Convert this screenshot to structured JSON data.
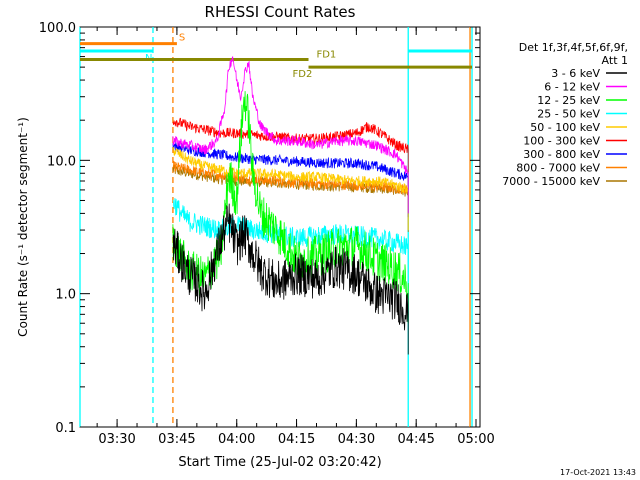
{
  "chart_data": {
    "type": "line",
    "title": "RHESSI Count Rates",
    "xlabel": "Start Time (25-Jul-02 03:20:42)",
    "ylabel": "Count Rate (s⁻¹ detector segment⁻¹)",
    "yscale": "log",
    "ylim": [
      0.1,
      100.0
    ],
    "xlim": [
      "03:20:42",
      "05:01:00"
    ],
    "x_ticks": [
      "03:30",
      "03:45",
      "04:00",
      "04:15",
      "04:30",
      "04:45",
      "05:00"
    ],
    "y_ticks": [
      "0.1",
      "1.0",
      "10.0",
      "100.0"
    ],
    "legend_header": [
      "Det 1f,3f,4f,5f,6f,9f,",
      "Att 1"
    ],
    "legend_position": "right",
    "timestamp": "17-Oct-2021 13:43",
    "series": [
      {
        "name": "3 - 6 keV",
        "color": "#000000",
        "x": [
          "03:44",
          "03:46",
          "03:48",
          "03:50",
          "03:52",
          "03:54",
          "03:56",
          "03:58",
          "04:00",
          "04:02",
          "04:04",
          "04:06",
          "04:10",
          "04:15",
          "04:20",
          "04:25",
          "04:30",
          "04:35",
          "04:40",
          "04:43"
        ],
        "y": [
          2.4,
          1.8,
          1.4,
          1.2,
          1.0,
          1.6,
          2.5,
          3.5,
          2.3,
          2.8,
          2.0,
          1.5,
          1.2,
          1.4,
          1.3,
          1.6,
          1.4,
          1.0,
          0.9,
          0.7
        ]
      },
      {
        "name": "6 - 12 keV",
        "color": "#ff00ff",
        "x": [
          "03:44",
          "03:48",
          "03:52",
          "03:55",
          "03:57",
          "03:58",
          "03:59",
          "04:00",
          "04:01",
          "04:02",
          "04:03",
          "04:04",
          "04:06",
          "04:10",
          "04:15",
          "04:20",
          "04:25",
          "04:30",
          "04:35",
          "04:40",
          "04:43"
        ],
        "y": [
          14,
          13,
          12,
          14,
          25,
          50,
          60,
          40,
          30,
          45,
          55,
          30,
          18,
          14,
          14,
          13,
          14,
          14,
          13,
          11,
          8
        ]
      },
      {
        "name": "12 - 25 keV",
        "color": "#00ff00",
        "x": [
          "03:44",
          "03:46",
          "03:48",
          "03:52",
          "03:56",
          "03:58",
          "04:00",
          "04:01",
          "04:02",
          "04:03",
          "04:04",
          "04:06",
          "04:10",
          "04:15",
          "04:20",
          "04:25",
          "04:30",
          "04:35",
          "04:40",
          "04:43"
        ],
        "y": [
          2.5,
          1.9,
          1.5,
          1.3,
          2.0,
          8.0,
          5.0,
          15,
          30,
          20,
          8.0,
          4.0,
          3.0,
          1.8,
          1.9,
          2.2,
          2.3,
          1.8,
          1.5,
          1.2
        ]
      },
      {
        "name": "25 - 50 keV",
        "color": "#00ffff",
        "x": [
          "03:44",
          "03:46",
          "03:48",
          "03:52",
          "03:56",
          "04:00",
          "04:04",
          "04:10",
          "04:15",
          "04:20",
          "04:25",
          "04:30",
          "04:35",
          "04:40",
          "04:43"
        ],
        "y": [
          5.0,
          4.0,
          3.5,
          3.2,
          3.0,
          3.3,
          3.0,
          2.8,
          2.6,
          2.7,
          2.8,
          2.7,
          2.6,
          2.4,
          2.2
        ]
      },
      {
        "name": "50 - 100 keV",
        "color": "#ffcc00",
        "x": [
          "03:44",
          "03:48",
          "03:52",
          "03:56",
          "04:00",
          "04:04",
          "04:10",
          "04:15",
          "04:20",
          "04:25",
          "04:30",
          "04:35",
          "04:40",
          "04:43"
        ],
        "y": [
          12,
          10,
          9,
          8.5,
          8,
          8,
          7.8,
          7.5,
          7.5,
          7.2,
          7,
          7,
          6.5,
          6
        ]
      },
      {
        "name": "100 - 300 keV",
        "color": "#ff0000",
        "x": [
          "03:44",
          "03:48",
          "03:52",
          "03:56",
          "04:00",
          "04:04",
          "04:10",
          "04:15",
          "04:20",
          "04:25",
          "04:30",
          "04:33",
          "04:36",
          "04:40",
          "04:43"
        ],
        "y": [
          20,
          18,
          17,
          16,
          16,
          15.5,
          15,
          14.5,
          14.5,
          15,
          16,
          18,
          16,
          13,
          12
        ]
      },
      {
        "name": "300 - 800 keV",
        "color": "#0000ff",
        "x": [
          "03:44",
          "03:48",
          "03:52",
          "03:56",
          "04:00",
          "04:04",
          "04:10",
          "04:15",
          "04:20",
          "04:25",
          "04:30",
          "04:35",
          "04:40",
          "04:43"
        ],
        "y": [
          13,
          12,
          11.5,
          11,
          10.5,
          10.2,
          10,
          9.8,
          9.6,
          9.5,
          9.5,
          9,
          8,
          7.5
        ]
      },
      {
        "name": "800 - 7000 keV",
        "color": "#ff8000",
        "x": [
          "03:44",
          "03:48",
          "03:52",
          "03:56",
          "04:00",
          "04:04",
          "04:10",
          "04:15",
          "04:20",
          "04:25",
          "04:30",
          "04:35",
          "04:40",
          "04:43"
        ],
        "y": [
          9,
          8.5,
          8,
          7.8,
          7.5,
          7.2,
          7,
          6.8,
          6.7,
          6.6,
          6.5,
          6.4,
          6.2,
          6
        ]
      },
      {
        "name": "7000 - 15000 keV",
        "color": "#aa7700",
        "x": [
          "03:44",
          "03:48",
          "03:52",
          "03:56",
          "04:00",
          "04:04",
          "04:10",
          "04:15",
          "04:20",
          "04:25",
          "04:30",
          "04:35",
          "04:40",
          "04:43"
        ],
        "y": [
          8.5,
          8,
          7.6,
          7.2,
          7,
          6.9,
          6.8,
          6.6,
          6.5,
          6.4,
          6.3,
          6.2,
          6,
          5.8
        ]
      }
    ],
    "flag_bars": [
      {
        "label": "S",
        "color": "#ff8000",
        "x_start": "03:20:42",
        "x_end": "03:45:00",
        "y": 75,
        "label_x": "03:45:30"
      },
      {
        "label": "N",
        "color": "#00ffff",
        "x_start": "03:20:42",
        "x_end": "03:39:00",
        "y": 66,
        "label_x": "03:37:00"
      },
      {
        "label": "",
        "color": "#00ffff",
        "x_start": "04:43:00",
        "x_end": "04:59:00",
        "y": 66
      },
      {
        "label": "FD1",
        "color": "#888800",
        "x_start": "03:20:42",
        "x_end": "04:18:00",
        "y": 57,
        "label_x": "04:20:00"
      },
      {
        "label": "FD2",
        "color": "#888800",
        "x_start": "04:18:00",
        "x_end": "04:59:00",
        "y": 50,
        "label_x": "04:14:00"
      }
    ],
    "markers": [
      {
        "x": "03:20:42",
        "color": "#00ffff",
        "style": "solid"
      },
      {
        "x": "03:39:00",
        "color": "#00ffff",
        "style": "dashed"
      },
      {
        "x": "03:44:00",
        "color": "#ff8000",
        "style": "dashed"
      },
      {
        "x": "04:43:00",
        "color": "#00ffff",
        "style": "solid"
      },
      {
        "x": "04:58:30",
        "color": "#ff8000",
        "style": "solid"
      },
      {
        "x": "04:59:00",
        "color": "#00ffff",
        "style": "solid"
      }
    ]
  }
}
